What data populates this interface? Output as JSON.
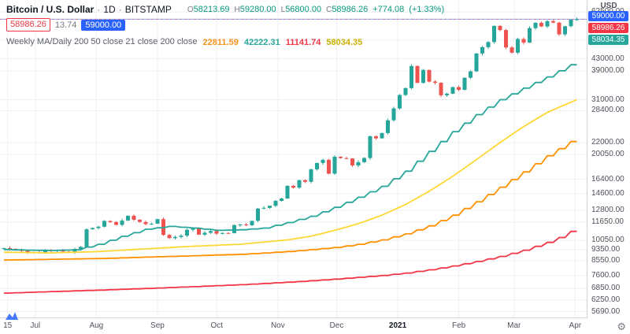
{
  "header": {
    "symbol": "Bitcoin / U.S. Dollar",
    "separator": "·",
    "interval": "1D",
    "exchange": "BITSTAMP",
    "ohlc": {
      "o_label": "O",
      "o": "58213.69",
      "h_label": "H",
      "h": "59280.00",
      "l_label": "L",
      "l": "56800.00",
      "c_label": "C",
      "c": "58986.26",
      "change": "+774.08",
      "change_pct": "(+1.33%)"
    },
    "price_box": "58986.26",
    "change_small": "13.74",
    "price_badge": "59000.00"
  },
  "indicator": {
    "title": "Weekly MA/Daily 200 50 close 21 close 200 close",
    "values": [
      {
        "text": "22811.59",
        "color": "#f7931a"
      },
      {
        "text": "42222.31",
        "color": "#26a69a"
      },
      {
        "text": "11141.74",
        "color": "#f23645"
      },
      {
        "text": "58034.35",
        "color": "#c9b100"
      }
    ]
  },
  "axis": {
    "currency_label": "USD",
    "y_ticks": [
      {
        "label": "62500.00",
        "value": 62500
      },
      {
        "label": "49900.00",
        "value": 49900
      },
      {
        "label": "43000.00",
        "value": 43000
      },
      {
        "label": "39000.00",
        "value": 39000
      },
      {
        "label": "31000.00",
        "value": 31000
      },
      {
        "label": "28400.00",
        "value": 28400
      },
      {
        "label": "22000.00",
        "value": 22000
      },
      {
        "label": "20050.00",
        "value": 20050
      },
      {
        "label": "16400.00",
        "value": 16400
      },
      {
        "label": "14600.00",
        "value": 14600
      },
      {
        "label": "12800.00",
        "value": 12800
      },
      {
        "label": "11650.00",
        "value": 11650
      },
      {
        "label": "10050.00",
        "value": 10050
      },
      {
        "label": "9350.00",
        "value": 9350
      },
      {
        "label": "8550.00",
        "value": 8550
      },
      {
        "label": "7600.00",
        "value": 7600
      },
      {
        "label": "6850.00",
        "value": 6850
      },
      {
        "label": "6250.00",
        "value": 6250
      },
      {
        "label": "5690.00",
        "value": 5690
      }
    ],
    "price_badges": [
      {
        "text": "59000.00",
        "color": "#2962ff"
      },
      {
        "text": "58986.26",
        "color": "#f23645"
      },
      {
        "text": "58034.35",
        "color": "#26a69a"
      }
    ],
    "x_labels": [
      {
        "text": "15",
        "pos": 0.013,
        "bold": false
      },
      {
        "text": "Jul",
        "pos": 0.06,
        "bold": false
      },
      {
        "text": "Aug",
        "pos": 0.164,
        "bold": false
      },
      {
        "text": "Sep",
        "pos": 0.268,
        "bold": false
      },
      {
        "text": "Oct",
        "pos": 0.369,
        "bold": false
      },
      {
        "text": "Nov",
        "pos": 0.473,
        "bold": false
      },
      {
        "text": "Dec",
        "pos": 0.573,
        "bold": false
      },
      {
        "text": "2021",
        "pos": 0.677,
        "bold": true
      },
      {
        "text": "Feb",
        "pos": 0.781,
        "bold": false
      },
      {
        "text": "Mar",
        "pos": 0.875,
        "bold": false
      },
      {
        "text": "Apr",
        "pos": 0.979,
        "bold": false
      }
    ]
  },
  "chart_data": {
    "type": "candlestick",
    "title": "Bitcoin / U.S. Dollar · 1D · BITSTAMP",
    "scale": "log",
    "y_range": [
      5500,
      67500
    ],
    "y_ticks": [
      62500,
      49900,
      43000,
      39000,
      31000,
      28400,
      22000,
      20050,
      16400,
      14600,
      12800,
      11650,
      10050,
      9350,
      8550,
      7600,
      6850,
      6250,
      5690
    ],
    "x_labels": [
      "15",
      "Jul",
      "Aug",
      "Sep",
      "Oct",
      "Nov",
      "Dec",
      "2021",
      "Feb",
      "Mar",
      "Apr"
    ],
    "last_bar": {
      "open": 58213.69,
      "high": 59280.0,
      "low": 56800.0,
      "close": 58986.26,
      "change": 774.08,
      "change_pct": 1.33
    },
    "bar_interval_days": 3,
    "up_color": "#26a69a",
    "down_color": "#ef5350",
    "closes": [
      9450,
      9400,
      9300,
      9250,
      9100,
      9150,
      9100,
      9300,
      9250,
      9300,
      9200,
      9160,
      9390,
      9550,
      10990,
      11100,
      11220,
      11750,
      11650,
      11390,
      11780,
      12250,
      11860,
      11650,
      11460,
      11500,
      11920,
      10510,
      10250,
      10340,
      10450,
      10950,
      11080,
      10530,
      10690,
      10840,
      10620,
      10670,
      10660,
      11370,
      11420,
      11360,
      11760,
      12970,
      13050,
      13270,
      13800,
      14060,
      15560,
      15330,
      16280,
      16070,
      17760,
      18680,
      19160,
      17150,
      19630,
      19420,
      19360,
      18320,
      18800,
      19440,
      23140,
      22750,
      23730,
      26270,
      28900,
      32180,
      33990,
      40580,
      35470,
      39320,
      35830,
      35470,
      32110,
      32520,
      34270,
      33530,
      36940,
      38870,
      44840,
      47160,
      49140,
      55920,
      54120,
      47090,
      45140,
      50360,
      48910,
      54920,
      57330,
      55650,
      58090,
      57410,
      52280,
      55780,
      58790,
      58986.26
    ],
    "price_lines": [
      {
        "value": 59000,
        "color": "#2962ff",
        "style": "solid"
      },
      {
        "value": 58986.26,
        "color": "#f23645",
        "style": "dashed"
      }
    ],
    "ma_series": [
      {
        "name": "ma-red",
        "color": "#f23645",
        "stepped": true,
        "anchors": [
          [
            0,
            6600
          ],
          [
            8,
            6680
          ],
          [
            16,
            6760
          ],
          [
            24,
            6850
          ],
          [
            32,
            6950
          ],
          [
            40,
            7060
          ],
          [
            48,
            7200
          ],
          [
            56,
            7380
          ],
          [
            64,
            7600
          ],
          [
            68,
            7750
          ],
          [
            72,
            7950
          ],
          [
            76,
            8200
          ],
          [
            80,
            8500
          ],
          [
            84,
            8850
          ],
          [
            88,
            9300
          ],
          [
            92,
            9900
          ],
          [
            95,
            10500
          ],
          [
            97,
            11141
          ]
        ]
      },
      {
        "name": "ma-orange",
        "color": "#ff9100",
        "stepped": true,
        "anchors": [
          [
            0,
            8600
          ],
          [
            8,
            8650
          ],
          [
            16,
            8700
          ],
          [
            24,
            8800
          ],
          [
            32,
            8900
          ],
          [
            40,
            9000
          ],
          [
            48,
            9200
          ],
          [
            56,
            9500
          ],
          [
            60,
            9750
          ],
          [
            64,
            10100
          ],
          [
            68,
            10600
          ],
          [
            72,
            11300
          ],
          [
            76,
            12300
          ],
          [
            80,
            13700
          ],
          [
            84,
            15400
          ],
          [
            88,
            17400
          ],
          [
            92,
            19800
          ],
          [
            97,
            22811
          ]
        ]
      },
      {
        "name": "ma-yellow",
        "color": "#fdd835",
        "stepped": false,
        "anchors": [
          [
            0,
            9150
          ],
          [
            8,
            9100
          ],
          [
            16,
            9200
          ],
          [
            24,
            9400
          ],
          [
            32,
            9600
          ],
          [
            40,
            9750
          ],
          [
            48,
            10100
          ],
          [
            52,
            10400
          ],
          [
            56,
            10900
          ],
          [
            60,
            11500
          ],
          [
            64,
            12300
          ],
          [
            68,
            13400
          ],
          [
            72,
            14900
          ],
          [
            76,
            16800
          ],
          [
            80,
            19200
          ],
          [
            84,
            22000
          ],
          [
            88,
            25000
          ],
          [
            92,
            28000
          ],
          [
            97,
            31000
          ]
        ]
      },
      {
        "name": "ma-green",
        "color": "#26a69a",
        "stepped": true,
        "anchors": [
          [
            0,
            9350
          ],
          [
            4,
            9300
          ],
          [
            8,
            9280
          ],
          [
            12,
            9330
          ],
          [
            16,
            9750
          ],
          [
            20,
            10400
          ],
          [
            24,
            11000
          ],
          [
            28,
            11250
          ],
          [
            32,
            11100
          ],
          [
            36,
            10900
          ],
          [
            40,
            10950
          ],
          [
            44,
            11100
          ],
          [
            48,
            11600
          ],
          [
            52,
            12200
          ],
          [
            56,
            13100
          ],
          [
            60,
            14200
          ],
          [
            64,
            15500
          ],
          [
            68,
            17500
          ],
          [
            72,
            20500
          ],
          [
            76,
            24000
          ],
          [
            80,
            27500
          ],
          [
            84,
            31000
          ],
          [
            88,
            34000
          ],
          [
            92,
            37200
          ],
          [
            97,
            42000
          ]
        ]
      }
    ]
  }
}
